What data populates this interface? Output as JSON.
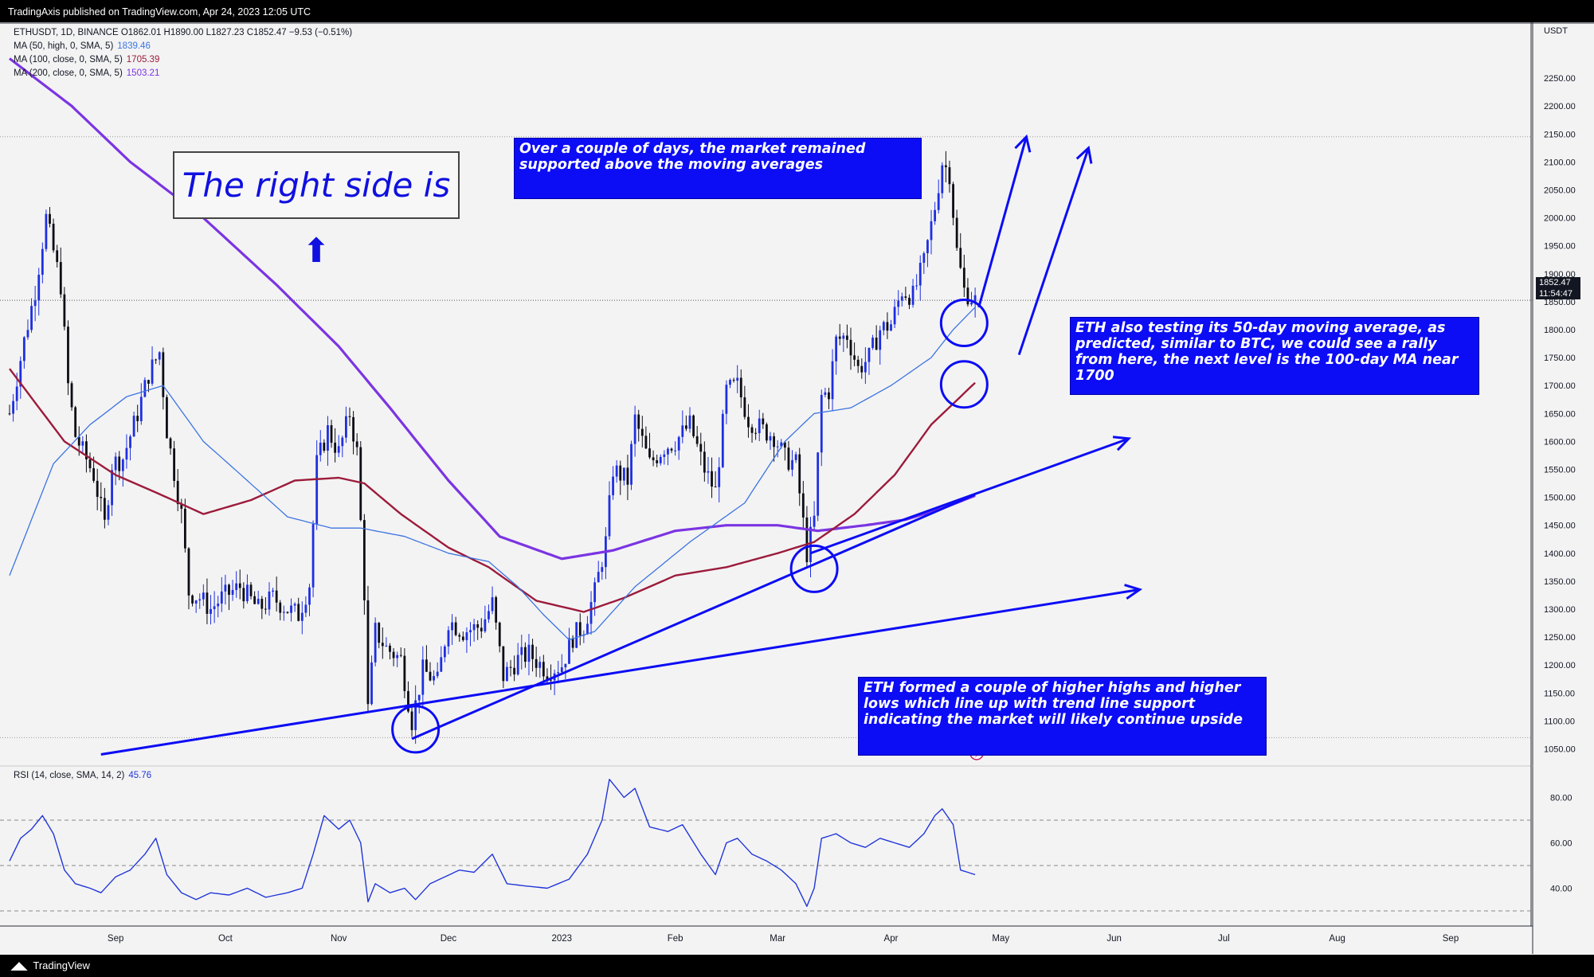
{
  "header": {
    "publisher_text": "TradingAxis published on TradingView.com, Apr 24, 2023 12:05 UTC"
  },
  "footer": {
    "brand": "TradingView"
  },
  "legend": {
    "symbol_line": "ETHUSDT, 1D, BINANCE  O1862.01  H1890.00  L1827.23  C1852.47  −9.53 (−0.51%)",
    "ma50_label": "MA (50, high, 0, SMA, 5)",
    "ma50_value": "1839.46",
    "ma100_label": "MA (100, close, 0, SMA, 5)",
    "ma100_value": "1705.39",
    "ma200_label": "MA (200, close, 0, SMA, 5)",
    "ma200_value": "1503.21",
    "rsi_label": "RSI (14, close, SMA, 14, 2)",
    "rsi_value": "45.76"
  },
  "price_tag": {
    "price": "1852.47",
    "countdown": "11:54:47"
  },
  "annotations": {
    "big_title": "The right side is",
    "arrow_glyph": "⬆",
    "box1": "Over a couple of days, the market remained supported above the moving averages",
    "box2": "ETH also testing its 50-day moving average, as predicted, similar to BTC, we could see a rally from here, the next level is the 100-day MA near 1700",
    "box3": "ETH formed a couple of higher highs and higher lows which line up with trend line support indicating the market will likely continue upside"
  },
  "colors": {
    "up": "#1e2fe0",
    "down": "#0c0c14",
    "ma50": "#3d74e0",
    "ma100": "#9c1b3a",
    "ma200": "#7b34e2",
    "annotation": "#0c0cf5",
    "rsi": "#2136d8"
  },
  "chart_data": {
    "type": "candlestick",
    "symbol": "ETHUSDT",
    "timeframe": "1D",
    "exchange": "BINANCE",
    "ohlc_last": {
      "open": 1862.01,
      "high": 1890.0,
      "low": 1827.23,
      "close": 1852.47,
      "change": -9.53,
      "change_pct": -0.51
    },
    "y_axis": {
      "unit": "USDT",
      "ticks": [
        1050,
        1100,
        1150,
        1200,
        1250,
        1300,
        1350,
        1400,
        1450,
        1500,
        1550,
        1600,
        1650,
        1700,
        1750,
        1800,
        1850,
        1900,
        1950,
        2000,
        2050,
        2100,
        2150,
        2200,
        2250
      ],
      "range": [
        1025,
        2290
      ]
    },
    "x_axis": {
      "ticks": [
        "Sep",
        "Oct",
        "Nov",
        "Dec",
        "2023",
        "Feb",
        "Mar",
        "Apr",
        "May",
        "Jun",
        "Jul",
        "Aug",
        "Sep"
      ],
      "range": [
        "2022-08-03",
        "2023-09-23"
      ]
    },
    "rsi_axis": {
      "ticks": [
        40.0,
        60.0,
        80.0
      ],
      "levels": [
        30,
        50,
        70
      ]
    },
    "price_anchors": [
      [
        "2022-08-03",
        1650
      ],
      [
        "2022-08-07",
        1780
      ],
      [
        "2022-08-10",
        1870
      ],
      [
        "2022-08-13",
        2000
      ],
      [
        "2022-08-17",
        1880
      ],
      [
        "2022-08-19",
        1700
      ],
      [
        "2022-08-21",
        1610
      ],
      [
        "2022-08-26",
        1540
      ],
      [
        "2022-08-29",
        1450
      ],
      [
        "2022-08-31",
        1560
      ],
      [
        "2022-09-03",
        1570
      ],
      [
        "2022-09-07",
        1650
      ],
      [
        "2022-09-10",
        1720
      ],
      [
        "2022-09-13",
        1760
      ],
      [
        "2022-09-15",
        1620
      ],
      [
        "2022-09-19",
        1470
      ],
      [
        "2022-09-21",
        1330
      ],
      [
        "2022-09-24",
        1320
      ],
      [
        "2022-09-27",
        1300
      ],
      [
        "2022-09-30",
        1320
      ],
      [
        "2022-10-05",
        1340
      ],
      [
        "2022-10-10",
        1300
      ],
      [
        "2022-10-14",
        1320
      ],
      [
        "2022-10-18",
        1300
      ],
      [
        "2022-10-21",
        1290
      ],
      [
        "2022-10-24",
        1345
      ],
      [
        "2022-10-26",
        1560
      ],
      [
        "2022-10-29",
        1620
      ],
      [
        "2022-11-01",
        1580
      ],
      [
        "2022-11-04",
        1650
      ],
      [
        "2022-11-06",
        1580
      ],
      [
        "2022-11-08",
        1330
      ],
      [
        "2022-11-09",
        1120
      ],
      [
        "2022-11-11",
        1260
      ],
      [
        "2022-11-14",
        1230
      ],
      [
        "2022-11-18",
        1210
      ],
      [
        "2022-11-21",
        1100
      ],
      [
        "2022-11-24",
        1190
      ],
      [
        "2022-11-28",
        1170
      ],
      [
        "2022-12-01",
        1280
      ],
      [
        "2022-12-05",
        1260
      ],
      [
        "2022-12-10",
        1270
      ],
      [
        "2022-12-13",
        1310
      ],
      [
        "2022-12-16",
        1180
      ],
      [
        "2022-12-20",
        1210
      ],
      [
        "2022-12-23",
        1220
      ],
      [
        "2022-12-28",
        1190
      ],
      [
        "2023-01-01",
        1200
      ],
      [
        "2023-01-04",
        1250
      ],
      [
        "2023-01-07",
        1270
      ],
      [
        "2023-01-10",
        1330
      ],
      [
        "2023-01-13",
        1420
      ],
      [
        "2023-01-15",
        1550
      ],
      [
        "2023-01-19",
        1530
      ],
      [
        "2023-01-21",
        1640
      ],
      [
        "2023-01-25",
        1560
      ],
      [
        "2023-01-29",
        1590
      ],
      [
        "2023-02-01",
        1600
      ],
      [
        "2023-02-05",
        1630
      ],
      [
        "2023-02-09",
        1550
      ],
      [
        "2023-02-12",
        1510
      ],
      [
        "2023-02-15",
        1690
      ],
      [
        "2023-02-18",
        1700
      ],
      [
        "2023-02-21",
        1640
      ],
      [
        "2023-02-25",
        1620
      ],
      [
        "2023-02-28",
        1610
      ],
      [
        "2023-03-03",
        1570
      ],
      [
        "2023-03-06",
        1560
      ],
      [
        "2023-03-09",
        1400
      ],
      [
        "2023-03-11",
        1460
      ],
      [
        "2023-03-13",
        1680
      ],
      [
        "2023-03-15",
        1690
      ],
      [
        "2023-03-17",
        1780
      ],
      [
        "2023-03-20",
        1790
      ],
      [
        "2023-03-23",
        1730
      ],
      [
        "2023-03-26",
        1750
      ],
      [
        "2023-03-29",
        1800
      ],
      [
        "2023-04-01",
        1810
      ],
      [
        "2023-04-04",
        1870
      ],
      [
        "2023-04-07",
        1860
      ],
      [
        "2023-04-10",
        1920
      ],
      [
        "2023-04-13",
        2020
      ],
      [
        "2023-04-15",
        2100
      ],
      [
        "2023-04-17",
        2080
      ],
      [
        "2023-04-19",
        1940
      ],
      [
        "2023-04-21",
        1870
      ],
      [
        "2023-04-24",
        1852
      ]
    ],
    "ma50_anchors": [
      [
        "2022-08-03",
        1360
      ],
      [
        "2022-08-15",
        1560
      ],
      [
        "2022-08-25",
        1630
      ],
      [
        "2022-09-04",
        1680
      ],
      [
        "2022-09-14",
        1700
      ],
      [
        "2022-09-25",
        1600
      ],
      [
        "2022-10-07",
        1530
      ],
      [
        "2022-10-18",
        1465
      ],
      [
        "2022-10-30",
        1445
      ],
      [
        "2022-11-07",
        1445
      ],
      [
        "2022-11-19",
        1430
      ],
      [
        "2022-12-01",
        1400
      ],
      [
        "2022-12-12",
        1385
      ],
      [
        "2022-12-20",
        1340
      ],
      [
        "2022-12-27",
        1290
      ],
      [
        "2023-01-03",
        1245
      ],
      [
        "2023-01-10",
        1260
      ],
      [
        "2023-01-21",
        1340
      ],
      [
        "2023-02-05",
        1420
      ],
      [
        "2023-02-20",
        1490
      ],
      [
        "2023-03-03",
        1600
      ],
      [
        "2023-03-11",
        1650
      ],
      [
        "2023-03-21",
        1660
      ],
      [
        "2023-04-01",
        1700
      ],
      [
        "2023-04-12",
        1750
      ],
      [
        "2023-04-18",
        1800
      ],
      [
        "2023-04-24",
        1840
      ]
    ],
    "ma100_anchors": [
      [
        "2022-08-03",
        1730
      ],
      [
        "2022-08-18",
        1600
      ],
      [
        "2022-09-01",
        1540
      ],
      [
        "2022-09-15",
        1500
      ],
      [
        "2022-09-25",
        1470
      ],
      [
        "2022-10-08",
        1495
      ],
      [
        "2022-10-20",
        1530
      ],
      [
        "2022-11-01",
        1535
      ],
      [
        "2022-11-08",
        1525
      ],
      [
        "2022-11-18",
        1470
      ],
      [
        "2022-12-01",
        1410
      ],
      [
        "2022-12-12",
        1375
      ],
      [
        "2022-12-25",
        1315
      ],
      [
        "2023-01-07",
        1295
      ],
      [
        "2023-01-18",
        1320
      ],
      [
        "2023-02-01",
        1360
      ],
      [
        "2023-02-15",
        1375
      ],
      [
        "2023-03-01",
        1400
      ],
      [
        "2023-03-11",
        1420
      ],
      [
        "2023-03-22",
        1470
      ],
      [
        "2023-04-02",
        1540
      ],
      [
        "2023-04-12",
        1630
      ],
      [
        "2023-04-24",
        1705
      ]
    ],
    "ma200_anchors": [
      [
        "2022-08-03",
        2285
      ],
      [
        "2022-08-20",
        2200
      ],
      [
        "2022-09-05",
        2100
      ],
      [
        "2022-09-25",
        2000
      ],
      [
        "2022-10-15",
        1880
      ],
      [
        "2022-11-01",
        1770
      ],
      [
        "2022-11-15",
        1660
      ],
      [
        "2022-12-01",
        1530
      ],
      [
        "2022-12-15",
        1430
      ],
      [
        "2023-01-01",
        1390
      ],
      [
        "2023-01-15",
        1405
      ],
      [
        "2023-02-01",
        1440
      ],
      [
        "2023-02-15",
        1450
      ],
      [
        "2023-03-01",
        1450
      ],
      [
        "2023-03-12",
        1440
      ],
      [
        "2023-03-25",
        1450
      ],
      [
        "2023-04-05",
        1460
      ],
      [
        "2023-04-15",
        1480
      ],
      [
        "2023-04-24",
        1503
      ]
    ],
    "rsi_anchors": [
      [
        "2022-08-03",
        52
      ],
      [
        "2022-08-06",
        62
      ],
      [
        "2022-08-09",
        66
      ],
      [
        "2022-08-12",
        72
      ],
      [
        "2022-08-15",
        64
      ],
      [
        "2022-08-18",
        48
      ],
      [
        "2022-08-21",
        42
      ],
      [
        "2022-08-25",
        40
      ],
      [
        "2022-08-28",
        38
      ],
      [
        "2022-09-01",
        45
      ],
      [
        "2022-09-05",
        48
      ],
      [
        "2022-09-09",
        55
      ],
      [
        "2022-09-12",
        62
      ],
      [
        "2022-09-15",
        46
      ],
      [
        "2022-09-19",
        38
      ],
      [
        "2022-09-23",
        35
      ],
      [
        "2022-09-27",
        38
      ],
      [
        "2022-10-02",
        37
      ],
      [
        "2022-10-07",
        40
      ],
      [
        "2022-10-12",
        36
      ],
      [
        "2022-10-18",
        38
      ],
      [
        "2022-10-22",
        40
      ],
      [
        "2022-10-25",
        55
      ],
      [
        "2022-10-28",
        72
      ],
      [
        "2022-11-01",
        66
      ],
      [
        "2022-11-04",
        70
      ],
      [
        "2022-11-07",
        60
      ],
      [
        "2022-11-09",
        34
      ],
      [
        "2022-11-11",
        42
      ],
      [
        "2022-11-15",
        38
      ],
      [
        "2022-11-19",
        40
      ],
      [
        "2022-11-22",
        35
      ],
      [
        "2022-11-26",
        42
      ],
      [
        "2022-11-30",
        45
      ],
      [
        "2022-12-04",
        48
      ],
      [
        "2022-12-08",
        47
      ],
      [
        "2022-12-13",
        55
      ],
      [
        "2022-12-17",
        42
      ],
      [
        "2022-12-22",
        41
      ],
      [
        "2022-12-28",
        40
      ],
      [
        "2023-01-03",
        44
      ],
      [
        "2023-01-08",
        55
      ],
      [
        "2023-01-12",
        70
      ],
      [
        "2023-01-14",
        88
      ],
      [
        "2023-01-18",
        80
      ],
      [
        "2023-01-21",
        84
      ],
      [
        "2023-01-25",
        67
      ],
      [
        "2023-01-30",
        65
      ],
      [
        "2023-02-03",
        68
      ],
      [
        "2023-02-08",
        55
      ],
      [
        "2023-02-12",
        46
      ],
      [
        "2023-02-15",
        60
      ],
      [
        "2023-02-18",
        62
      ],
      [
        "2023-02-22",
        55
      ],
      [
        "2023-02-26",
        52
      ],
      [
        "2023-03-02",
        48
      ],
      [
        "2023-03-06",
        42
      ],
      [
        "2023-03-09",
        32
      ],
      [
        "2023-03-11",
        40
      ],
      [
        "2023-03-13",
        62
      ],
      [
        "2023-03-17",
        64
      ],
      [
        "2023-03-21",
        60
      ],
      [
        "2023-03-25",
        58
      ],
      [
        "2023-03-29",
        62
      ],
      [
        "2023-04-02",
        60
      ],
      [
        "2023-04-06",
        58
      ],
      [
        "2023-04-10",
        64
      ],
      [
        "2023-04-13",
        72
      ],
      [
        "2023-04-15",
        75
      ],
      [
        "2023-04-18",
        68
      ],
      [
        "2023-04-20",
        48
      ],
      [
        "2023-04-22",
        47
      ],
      [
        "2023-04-24",
        46
      ]
    ],
    "trendlines": [
      {
        "from": [
          "2022-11-21",
          1068
        ],
        "to": [
          "2023-04-24",
          1505
        ]
      },
      {
        "from": [
          "2022-08-28",
          1040
        ],
        "to": [
          "2023-06-08",
          1335
        ]
      },
      {
        "from": [
          "2023-03-10",
          1400
        ],
        "to": [
          "2023-06-05",
          1605
        ]
      }
    ],
    "up_arrows": [
      {
        "from": [
          "2023-04-25",
          1840
        ],
        "to": [
          "2023-05-08",
          2145
        ]
      },
      {
        "from": [
          "2023-05-06",
          1755
        ],
        "to": [
          "2023-05-25",
          2125
        ]
      }
    ],
    "circles": [
      {
        "center": [
          "2022-11-22",
          1085
        ]
      },
      {
        "center": [
          "2023-03-11",
          1372
        ]
      },
      {
        "center": [
          "2023-04-21",
          1812
        ]
      },
      {
        "center": [
          "2023-04-21",
          1702
        ]
      }
    ]
  }
}
